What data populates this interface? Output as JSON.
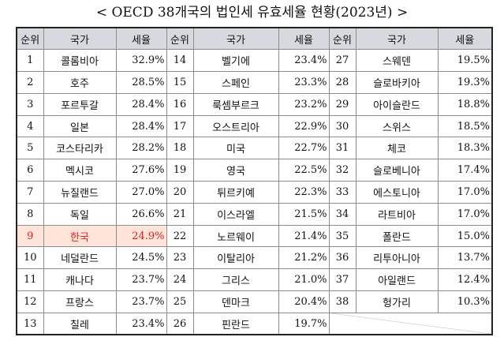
{
  "title": "< OECD 38개국의 법인세 유효세율 현황(2023년) >",
  "headers": [
    "순위",
    "국가",
    "세율"
  ],
  "rows": [
    {
      "rank": "1",
      "country": "콜롬비아",
      "rate": "32.9%"
    },
    {
      "rank": "2",
      "country": "호주",
      "rate": "28.5%"
    },
    {
      "rank": "3",
      "country": "포르투갈",
      "rate": "28.4%"
    },
    {
      "rank": "4",
      "country": "일본",
      "rate": "28.4%"
    },
    {
      "rank": "5",
      "country": "코스타리카",
      "rate": "28.2%"
    },
    {
      "rank": "6",
      "country": "멕시코",
      "rate": "27.6%"
    },
    {
      "rank": "7",
      "country": "뉴질랜드",
      "rate": "27.0%"
    },
    {
      "rank": "8",
      "country": "독일",
      "rate": "26.6%"
    },
    {
      "rank": "9",
      "country": "한국",
      "rate": "24.9%",
      "highlight": true
    },
    {
      "rank": "10",
      "country": "네덜란드",
      "rate": "24.5%"
    },
    {
      "rank": "11",
      "country": "캐나다",
      "rate": "23.7%"
    },
    {
      "rank": "12",
      "country": "프랑스",
      "rate": "23.7%"
    },
    {
      "rank": "13",
      "country": "칠레",
      "rate": "23.4%"
    },
    {
      "rank": "14",
      "country": "벨기에",
      "rate": "23.4%"
    },
    {
      "rank": "15",
      "country": "스페인",
      "rate": "23.3%"
    },
    {
      "rank": "16",
      "country": "룩셈부르크",
      "rate": "23.2%"
    },
    {
      "rank": "17",
      "country": "오스트리아",
      "rate": "22.9%"
    },
    {
      "rank": "18",
      "country": "미국",
      "rate": "22.7%"
    },
    {
      "rank": "19",
      "country": "영국",
      "rate": "22.5%"
    },
    {
      "rank": "20",
      "country": "튀르키예",
      "rate": "22.3%"
    },
    {
      "rank": "21",
      "country": "이스라엘",
      "rate": "21.5%"
    },
    {
      "rank": "22",
      "country": "노르웨이",
      "rate": "21.4%"
    },
    {
      "rank": "23",
      "country": "이탈리아",
      "rate": "21.2%"
    },
    {
      "rank": "24",
      "country": "그리스",
      "rate": "21.0%"
    },
    {
      "rank": "25",
      "country": "덴마크",
      "rate": "20.4%"
    },
    {
      "rank": "26",
      "country": "핀란드",
      "rate": "19.7%"
    },
    {
      "rank": "27",
      "country": "스웨덴",
      "rate": "19.5%"
    },
    {
      "rank": "28",
      "country": "슬로바키아",
      "rate": "19.3%"
    },
    {
      "rank": "29",
      "country": "아이슬란드",
      "rate": "18.8%"
    },
    {
      "rank": "30",
      "country": "스위스",
      "rate": "18.5%"
    },
    {
      "rank": "31",
      "country": "체코",
      "rate": "18.3%"
    },
    {
      "rank": "32",
      "country": "슬로베니아",
      "rate": "17.4%"
    },
    {
      "rank": "33",
      "country": "에스토니아",
      "rate": "17.0%"
    },
    {
      "rank": "34",
      "country": "라트비아",
      "rate": "17.0%"
    },
    {
      "rank": "35",
      "country": "폴란드",
      "rate": "15.0%"
    },
    {
      "rank": "36",
      "country": "리투아니아",
      "rate": "13.7%"
    },
    {
      "rank": "37",
      "country": "아일랜드",
      "rate": "12.4%"
    },
    {
      "rank": "38",
      "country": "헝가리",
      "rate": "10.3%"
    }
  ],
  "colors": {
    "header_bg": "#d6d9de",
    "highlight_bg": "#fde3d8",
    "highlight_text": "#e02020"
  }
}
